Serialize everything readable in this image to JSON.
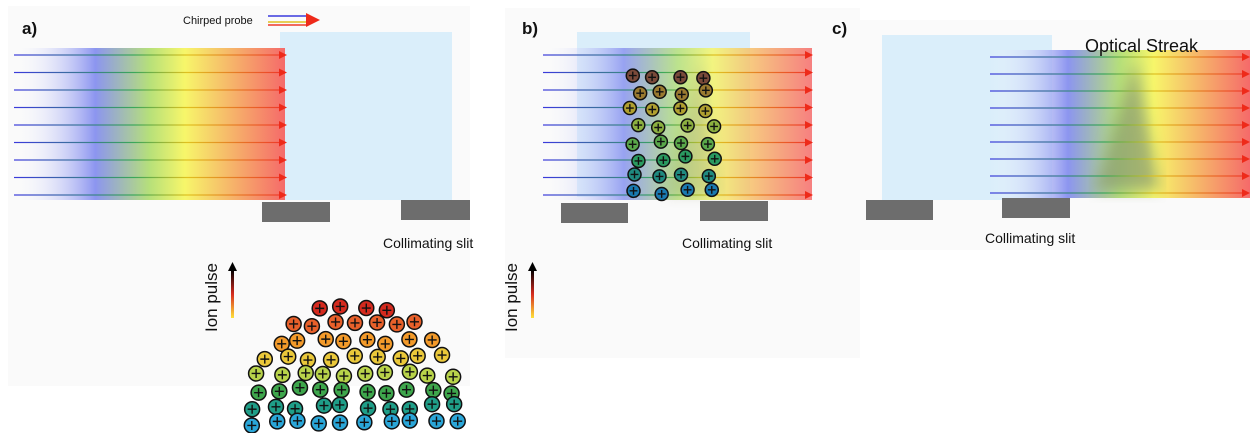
{
  "panels": [
    {
      "label": "a)",
      "probe_label": "Chirped probe",
      "slit_label": "Collimating slit",
      "ion_label": "Ion pulse"
    },
    {
      "label": "b)",
      "slit_label": "Collimating slit",
      "ion_label": "Ion pulse"
    },
    {
      "label": "c)",
      "slit_label": "Collimating slit",
      "title": "Optical Streak"
    }
  ]
}
